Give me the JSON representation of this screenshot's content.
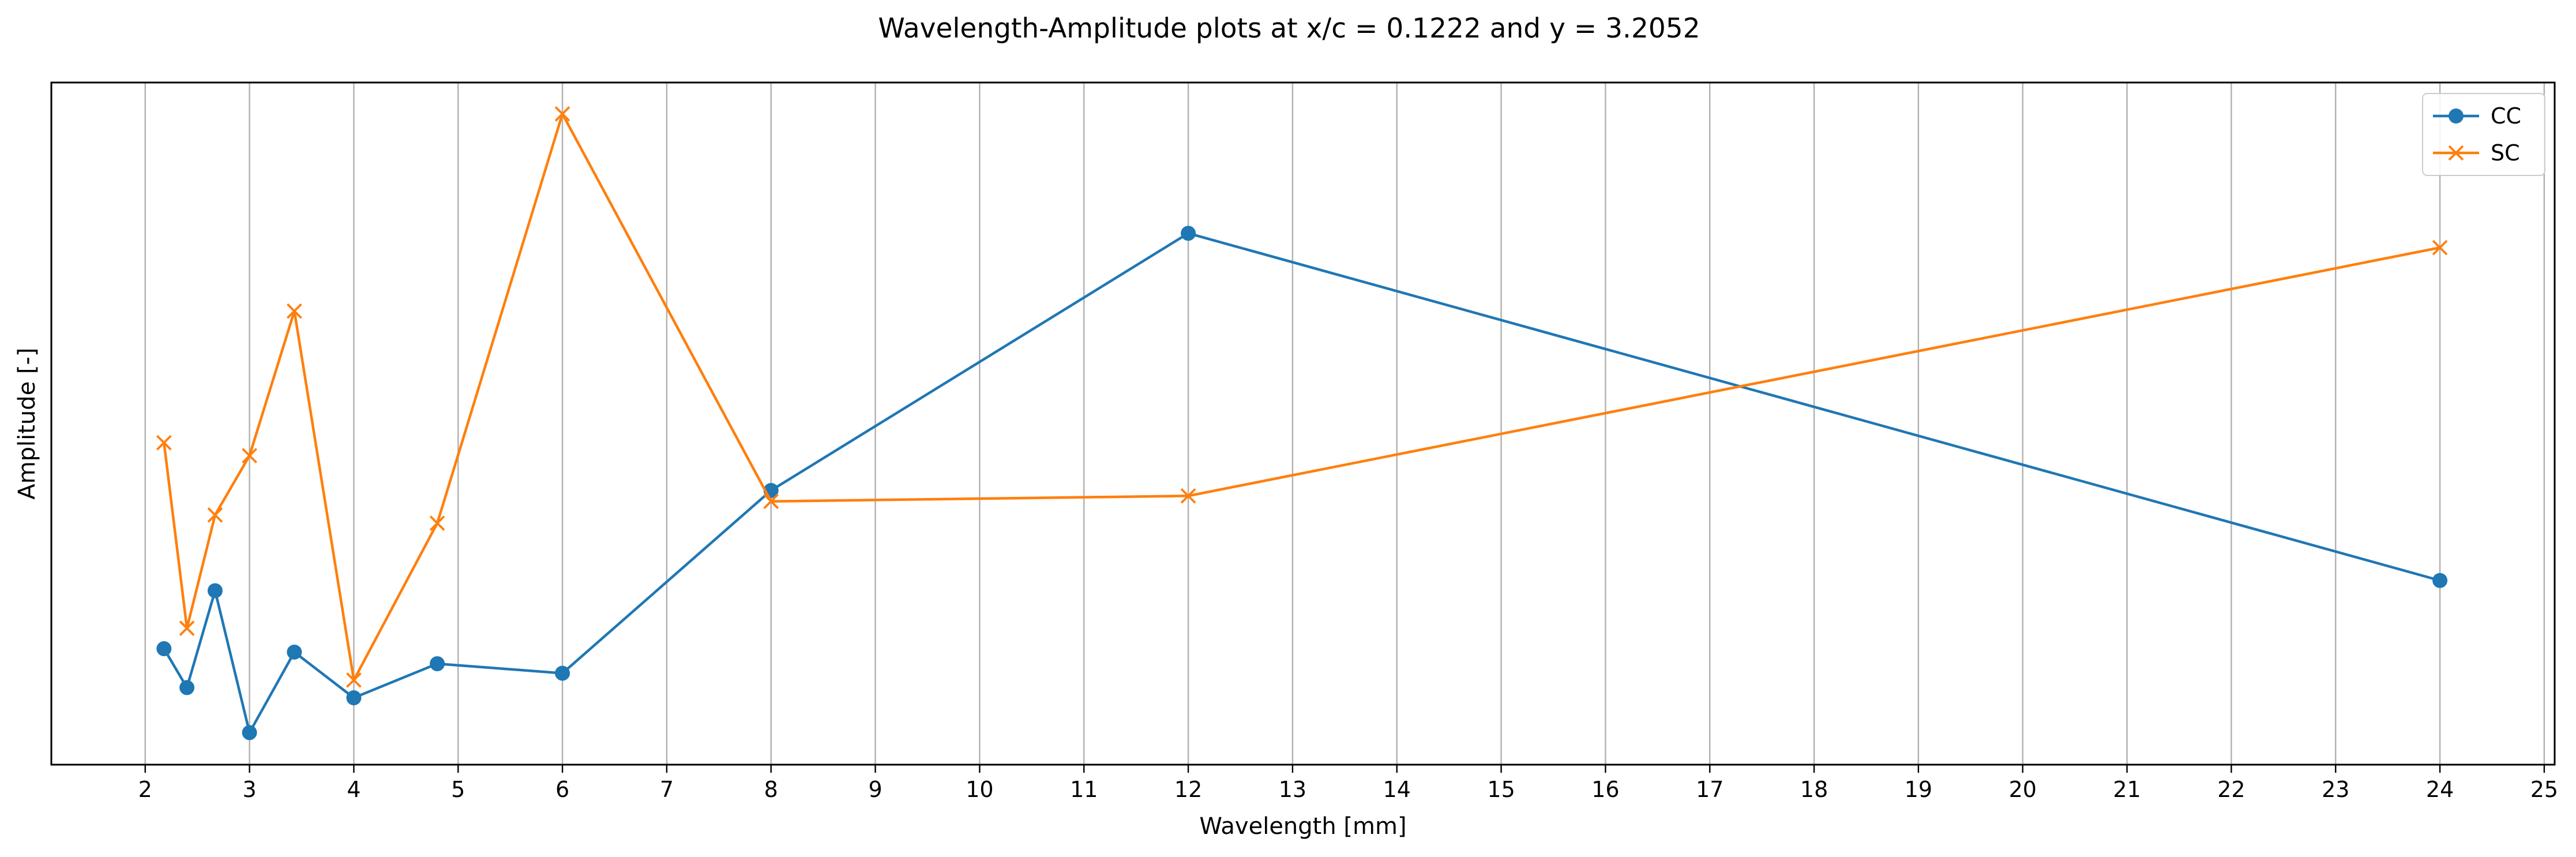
{
  "chart_data": {
    "type": "line",
    "title": "Wavelength-Amplitude plots at x/c = 0.1222 and y = 3.2052",
    "xlabel": "Wavelength [mm]",
    "ylabel": "Amplitude [-]",
    "xlim": [
      1.1,
      25.1
    ],
    "ylim": [
      0.0,
      1.0
    ],
    "xticks": [
      2,
      3,
      4,
      5,
      6,
      7,
      8,
      9,
      10,
      11,
      12,
      13,
      14,
      15,
      16,
      17,
      18,
      19,
      20,
      21,
      22,
      23,
      24,
      25
    ],
    "yticks_shown": false,
    "grid": "vertical",
    "legend_position": "top-right",
    "x": [
      2.18,
      2.4,
      2.67,
      3.0,
      3.43,
      4.0,
      4.8,
      6.0,
      8.0,
      12.0,
      24.0
    ],
    "series": [
      {
        "name": "CC",
        "color": "#1f77b4",
        "marker": "circle",
        "values": [
          0.17,
          0.113,
          0.255,
          0.047,
          0.165,
          0.098,
          0.148,
          0.134,
          0.402,
          0.779,
          0.27
        ]
      },
      {
        "name": "SC",
        "color": "#ff7f0e",
        "marker": "x",
        "values": [
          0.472,
          0.2,
          0.366,
          0.453,
          0.665,
          0.124,
          0.354,
          0.954,
          0.386,
          0.394,
          0.758
        ]
      }
    ]
  }
}
